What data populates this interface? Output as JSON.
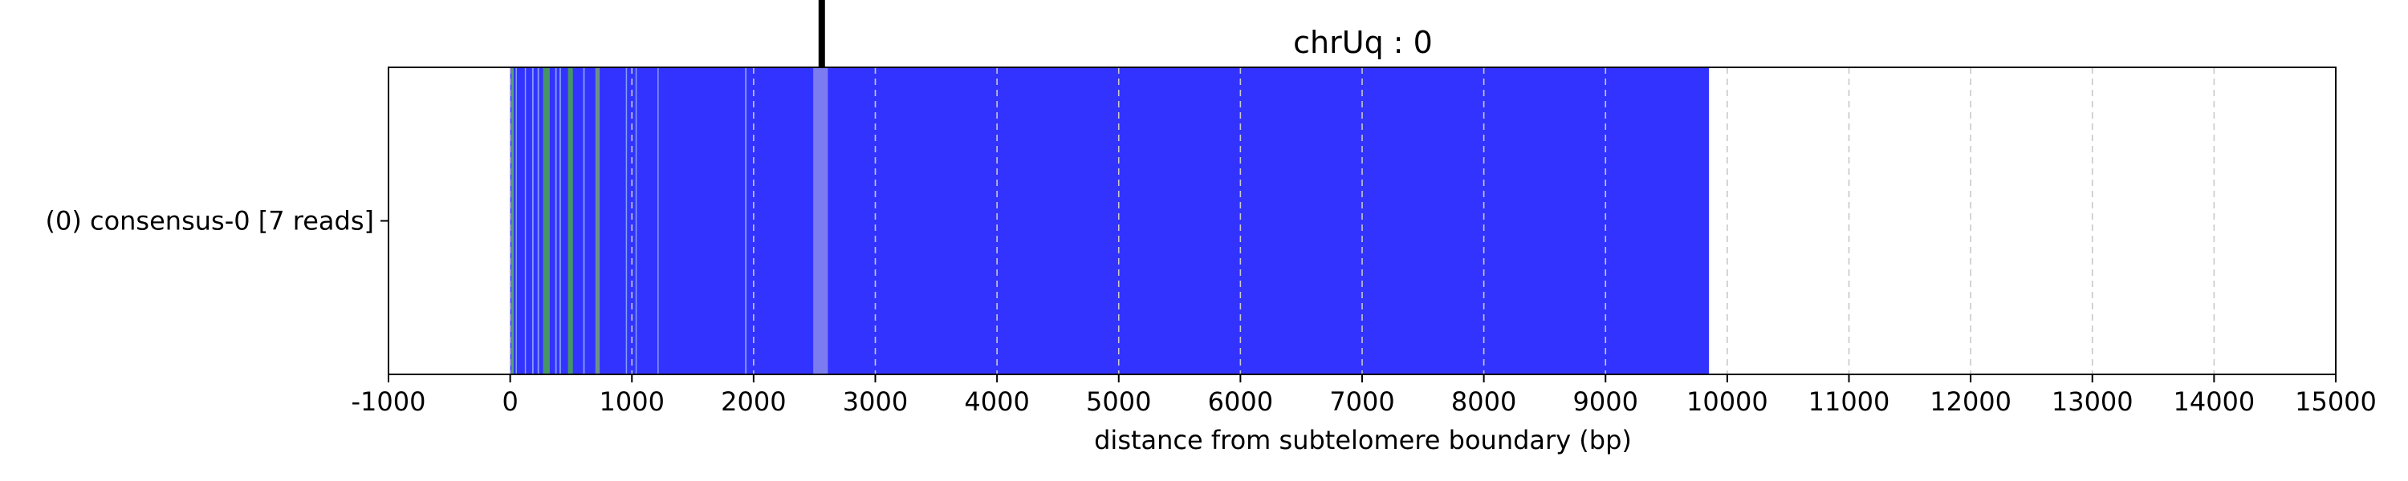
{
  "chart_data": {
    "type": "bar",
    "orientation": "horizontal",
    "title": "chrUq : 0",
    "xlabel": "distance from subtelomere boundary (bp)",
    "ylabel": "",
    "xlim": [
      -1000,
      15000
    ],
    "xticks": [
      -1000,
      0,
      1000,
      2000,
      3000,
      4000,
      5000,
      6000,
      7000,
      8000,
      9000,
      10000,
      11000,
      12000,
      13000,
      14000,
      15000
    ],
    "grid": "vertical dashed at x-ticks",
    "categories": [
      "(0) consensus-0 [7 reads]"
    ],
    "series": [
      {
        "category": "(0) consensus-0 [7 reads]",
        "start": 0,
        "end": 9850,
        "color": "#3333ff"
      }
    ],
    "stripes": [
      {
        "x": 10,
        "width": 18,
        "color": "#5cb85c"
      },
      {
        "x": 45,
        "width": 10,
        "color": "#8fb0ff"
      },
      {
        "x": 120,
        "width": 10,
        "color": "#8fb0ff"
      },
      {
        "x": 180,
        "width": 12,
        "color": "#8fb0ff"
      },
      {
        "x": 225,
        "width": 12,
        "color": "#8fb0ff"
      },
      {
        "x": 270,
        "width": 55,
        "color": "#4aa84a"
      },
      {
        "x": 370,
        "width": 12,
        "color": "#8fb0ff"
      },
      {
        "x": 405,
        "width": 12,
        "color": "#8fb0ff"
      },
      {
        "x": 475,
        "width": 40,
        "color": "#4aa84a"
      },
      {
        "x": 600,
        "width": 12,
        "color": "#8fb0ff"
      },
      {
        "x": 700,
        "width": 35,
        "color": "#7aa07a"
      },
      {
        "x": 950,
        "width": 10,
        "color": "#8fb0ff"
      },
      {
        "x": 1030,
        "width": 10,
        "color": "#8fb0ff"
      },
      {
        "x": 1210,
        "width": 10,
        "color": "#8fb0ff"
      },
      {
        "x": 1930,
        "width": 12,
        "color": "#8fb0ff"
      },
      {
        "x": 2490,
        "width": 120,
        "color": "#8a8aee"
      }
    ],
    "marker": {
      "x": 2560,
      "color": "#000000"
    },
    "colors": {
      "bar": "#3333ff",
      "green_stripe": "#4aa84a",
      "light_stripe": "#8fb0ff",
      "highlight": "#8a8aee",
      "grid": "#c8c8c8",
      "marker": "#000000"
    }
  }
}
